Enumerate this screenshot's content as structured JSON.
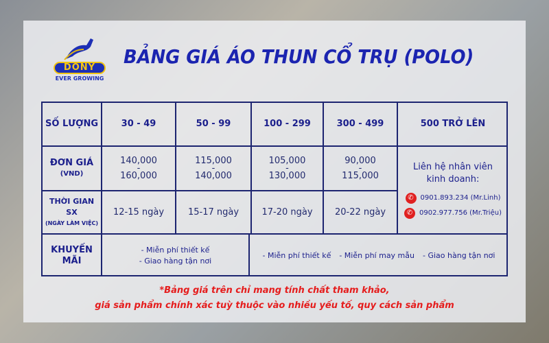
{
  "logo": {
    "brand": "DONY",
    "tagline": "EVER GROWING"
  },
  "title": "BẢNG GIÁ ÁO THUN CỔ TRỤ (POLO)",
  "table": {
    "row_headers": {
      "quantity": "SỐ LƯỢNG",
      "unit_price": "ĐƠN GIÁ",
      "unit_price_sub": "(VND)",
      "production_time": "THỜI GIAN SX",
      "production_time_sub": "(NGÀY LÀM VIỆC)",
      "promotion": "KHUYẾN MÃI"
    },
    "quantities": [
      "30 - 49",
      "50 - 99",
      "100 - 299",
      "300 - 499",
      "500 TRỞ LÊN"
    ],
    "prices": [
      {
        "from": "140,000",
        "sep": "-",
        "to": "160,000"
      },
      {
        "from": "115,000",
        "sep": "-",
        "to": "140,000"
      },
      {
        "from": "105,000",
        "sep": "-",
        "to": "130,000"
      },
      {
        "from": "90,000",
        "sep": "-",
        "to": "115,000"
      }
    ],
    "times": [
      "12-15 ngày",
      "15-17 ngày",
      "17-20 ngày",
      "20-22 ngày"
    ],
    "contact": {
      "label": "Liên hệ nhân viên kinh doanh:",
      "phones": [
        "0901.893.234 (Mr.Linh)",
        "0902.977.756 (Mr.Triệu)"
      ]
    },
    "promo_small": [
      "- Miễn phí thiết kế",
      "- Giao hàng tận nơi"
    ],
    "promo_large": [
      "- Miễn phí thiết kế",
      "- Miễn phí may mẫu",
      "- Giao hàng tận nơi"
    ]
  },
  "note": [
    "*Bảng giá trên chỉ mang tính chất tham khảo,",
    "giá sản phẩm chính xác tuỳ thuộc vào nhiều yếu tố, quy cách sản phẩm"
  ],
  "colors": {
    "title": "#1b24b0",
    "border": "#1c2470",
    "note": "#e51c1c",
    "phone_icon": "#e02020"
  }
}
